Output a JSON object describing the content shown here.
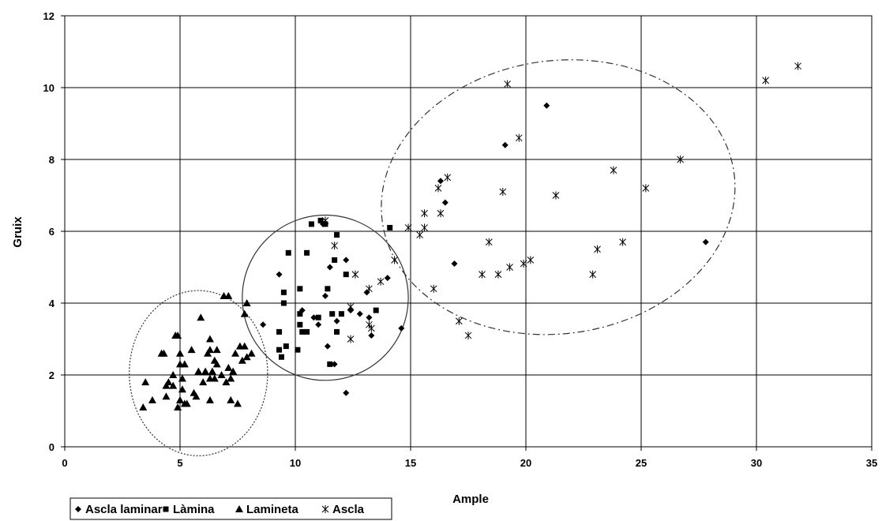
{
  "chart_data": {
    "type": "scatter",
    "title": "",
    "xlabel": "Ample",
    "ylabel": "Gruix",
    "xlim": [
      0,
      35
    ],
    "ylim": [
      0,
      12
    ],
    "xticks": [
      0,
      5,
      10,
      15,
      20,
      25,
      30,
      35
    ],
    "yticks": [
      0,
      2,
      4,
      6,
      8,
      10,
      12
    ],
    "grid": true,
    "legend_position": "bottom-left",
    "series": [
      {
        "name": "Ascla laminar",
        "marker": "diamond",
        "points": [
          [
            8.6,
            3.4
          ],
          [
            9.3,
            4.8
          ],
          [
            10.3,
            3.8
          ],
          [
            10.8,
            3.6
          ],
          [
            11.0,
            3.4
          ],
          [
            11.2,
            6.2
          ],
          [
            11.3,
            4.2
          ],
          [
            11.4,
            2.8
          ],
          [
            11.5,
            5.0
          ],
          [
            11.7,
            2.3
          ],
          [
            11.8,
            3.5
          ],
          [
            12.2,
            5.2
          ],
          [
            12.2,
            1.5
          ],
          [
            12.4,
            3.8
          ],
          [
            12.8,
            3.7
          ],
          [
            13.1,
            4.3
          ],
          [
            13.2,
            3.6
          ],
          [
            13.3,
            3.1
          ],
          [
            14.0,
            4.7
          ],
          [
            14.6,
            3.3
          ],
          [
            16.3,
            7.4
          ],
          [
            16.5,
            6.8
          ],
          [
            16.9,
            5.1
          ],
          [
            19.1,
            8.4
          ],
          [
            20.9,
            9.5
          ],
          [
            27.8,
            5.7
          ]
        ]
      },
      {
        "name": "Làmina",
        "marker": "square",
        "points": [
          [
            9.3,
            3.2
          ],
          [
            9.3,
            2.7
          ],
          [
            9.4,
            2.5
          ],
          [
            9.5,
            4.3
          ],
          [
            9.5,
            4.0
          ],
          [
            9.6,
            2.8
          ],
          [
            9.7,
            5.4
          ],
          [
            10.1,
            2.7
          ],
          [
            10.2,
            3.7
          ],
          [
            10.2,
            4.4
          ],
          [
            10.2,
            3.4
          ],
          [
            10.3,
            3.2
          ],
          [
            10.5,
            5.4
          ],
          [
            10.5,
            3.2
          ],
          [
            10.7,
            6.2
          ],
          [
            11.0,
            3.6
          ],
          [
            11.1,
            6.3
          ],
          [
            11.3,
            6.2
          ],
          [
            11.4,
            4.4
          ],
          [
            11.5,
            2.3
          ],
          [
            11.6,
            3.7
          ],
          [
            11.7,
            5.2
          ],
          [
            11.8,
            5.9
          ],
          [
            11.8,
            3.2
          ],
          [
            12.0,
            3.7
          ],
          [
            12.2,
            4.8
          ],
          [
            13.5,
            3.8
          ],
          [
            14.1,
            6.1
          ]
        ]
      },
      {
        "name": "Lamineta",
        "marker": "triangle",
        "points": [
          [
            3.4,
            1.1
          ],
          [
            3.5,
            1.8
          ],
          [
            3.8,
            1.3
          ],
          [
            4.2,
            2.6
          ],
          [
            4.3,
            2.6
          ],
          [
            4.4,
            1.7
          ],
          [
            4.4,
            1.4
          ],
          [
            4.5,
            1.8
          ],
          [
            4.7,
            2.0
          ],
          [
            4.7,
            1.7
          ],
          [
            4.8,
            3.1
          ],
          [
            4.9,
            1.1
          ],
          [
            4.9,
            3.1
          ],
          [
            5.0,
            2.6
          ],
          [
            5.0,
            2.3
          ],
          [
            5.0,
            1.3
          ],
          [
            5.1,
            1.9
          ],
          [
            5.1,
            1.6
          ],
          [
            5.2,
            2.3
          ],
          [
            5.2,
            1.2
          ],
          [
            5.3,
            1.2
          ],
          [
            5.5,
            2.7
          ],
          [
            5.6,
            1.5
          ],
          [
            5.7,
            1.4
          ],
          [
            5.8,
            2.1
          ],
          [
            5.9,
            3.6
          ],
          [
            6.0,
            1.8
          ],
          [
            6.1,
            2.1
          ],
          [
            6.2,
            2.6
          ],
          [
            6.3,
            3.0
          ],
          [
            6.3,
            2.7
          ],
          [
            6.3,
            1.9
          ],
          [
            6.3,
            1.3
          ],
          [
            6.4,
            2.1
          ],
          [
            6.5,
            2.4
          ],
          [
            6.5,
            1.9
          ],
          [
            6.6,
            2.3
          ],
          [
            6.6,
            2.7
          ],
          [
            6.8,
            2.0
          ],
          [
            6.9,
            4.2
          ],
          [
            7.0,
            1.8
          ],
          [
            7.1,
            4.2
          ],
          [
            7.1,
            2.2
          ],
          [
            7.2,
            1.9
          ],
          [
            7.2,
            1.3
          ],
          [
            7.3,
            2.1
          ],
          [
            7.4,
            2.6
          ],
          [
            7.5,
            1.2
          ],
          [
            7.6,
            2.8
          ],
          [
            7.7,
            2.4
          ],
          [
            7.8,
            2.8
          ],
          [
            7.8,
            3.7
          ],
          [
            7.9,
            4.0
          ],
          [
            7.9,
            2.5
          ],
          [
            8.1,
            2.6
          ]
        ]
      },
      {
        "name": "Ascla",
        "marker": "asterisk",
        "points": [
          [
            11.3,
            6.3
          ],
          [
            11.7,
            5.6
          ],
          [
            12.4,
            3.0
          ],
          [
            12.4,
            3.9
          ],
          [
            12.6,
            4.8
          ],
          [
            13.2,
            4.4
          ],
          [
            13.2,
            3.4
          ],
          [
            13.3,
            3.3
          ],
          [
            13.7,
            4.6
          ],
          [
            14.3,
            5.2
          ],
          [
            14.9,
            6.1
          ],
          [
            15.4,
            5.9
          ],
          [
            15.6,
            6.1
          ],
          [
            15.6,
            6.5
          ],
          [
            16.0,
            4.4
          ],
          [
            16.2,
            7.2
          ],
          [
            16.3,
            6.5
          ],
          [
            16.6,
            7.5
          ],
          [
            17.1,
            3.5
          ],
          [
            17.5,
            3.1
          ],
          [
            18.1,
            4.8
          ],
          [
            18.4,
            5.7
          ],
          [
            18.8,
            4.8
          ],
          [
            19.0,
            7.1
          ],
          [
            19.2,
            10.1
          ],
          [
            19.3,
            5.0
          ],
          [
            19.7,
            8.6
          ],
          [
            19.9,
            5.1
          ],
          [
            20.2,
            5.2
          ],
          [
            21.3,
            7.0
          ],
          [
            22.9,
            4.8
          ],
          [
            23.1,
            5.5
          ],
          [
            23.8,
            7.7
          ],
          [
            24.2,
            5.7
          ],
          [
            25.2,
            7.2
          ],
          [
            26.7,
            8.0
          ],
          [
            30.4,
            10.2
          ],
          [
            31.8,
            10.6
          ]
        ]
      }
    ],
    "annotations": [
      {
        "shape": "ellipse",
        "style": "dotted",
        "cx": 5.8,
        "cy": 2.05,
        "rx": 3.0,
        "ry": 2.3
      },
      {
        "shape": "ellipse",
        "style": "solid",
        "cx": 11.3,
        "cy": 4.15,
        "rx": 3.6,
        "ry": 2.3
      },
      {
        "shape": "ellipse",
        "style": "dashdot",
        "cx": 21.4,
        "cy": 6.95,
        "rx": 7.7,
        "ry": 3.8,
        "rotation_deg": -8
      }
    ]
  }
}
